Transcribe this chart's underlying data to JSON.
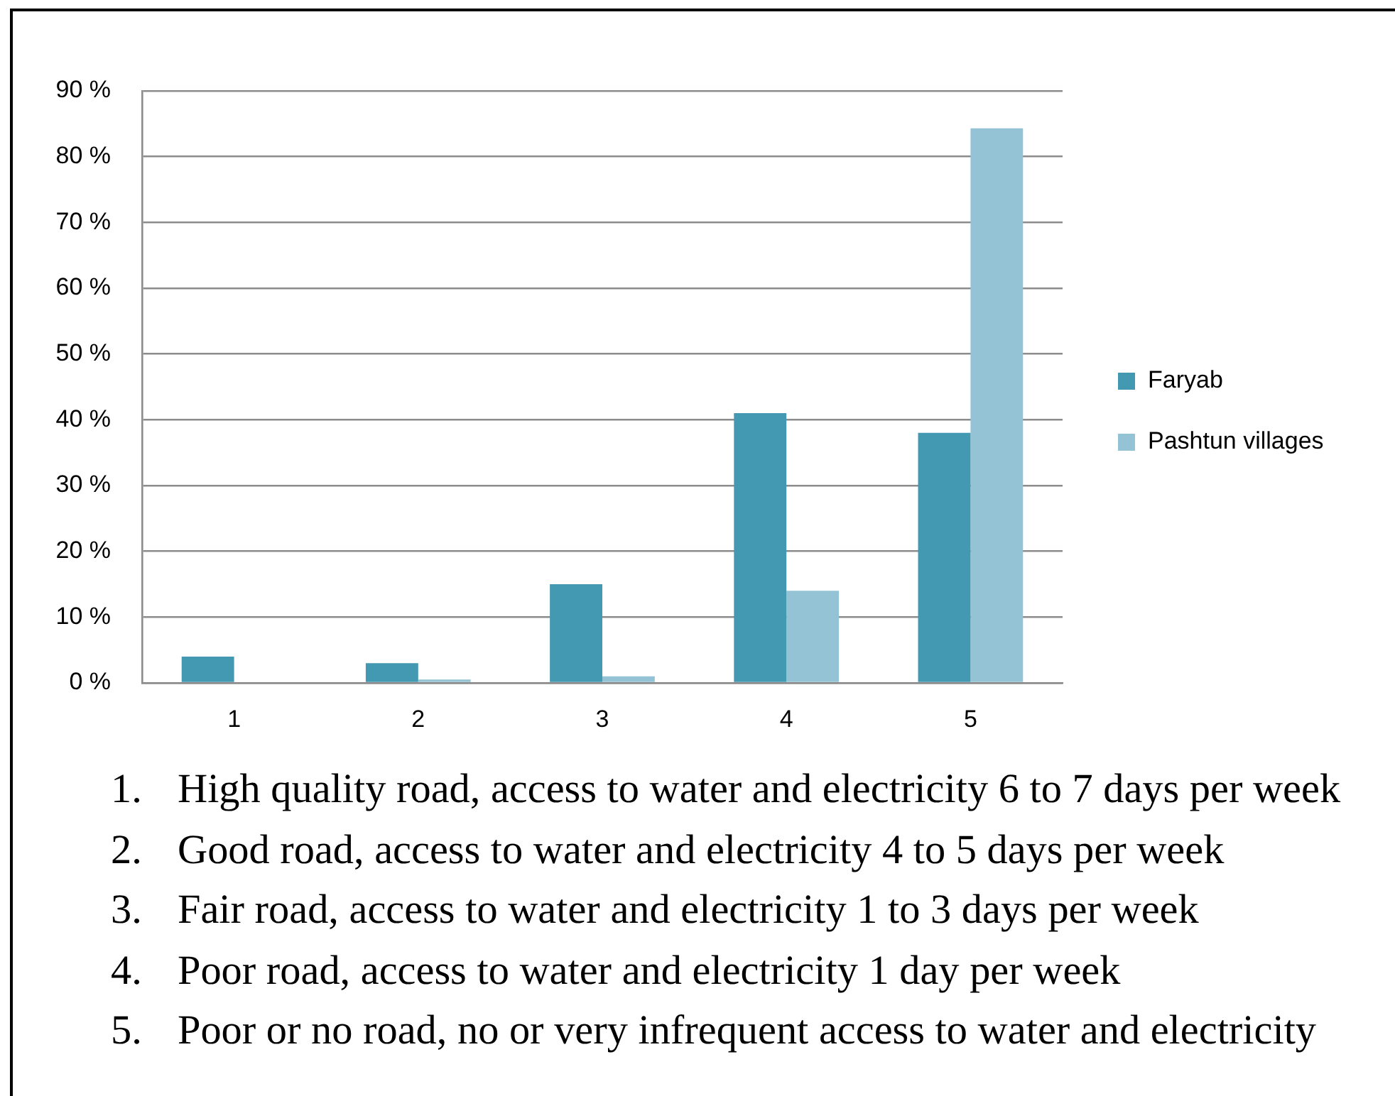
{
  "chart_data": {
    "type": "bar",
    "categories": [
      "1",
      "2",
      "3",
      "4",
      "5"
    ],
    "series": [
      {
        "name": "Faryab",
        "color": "#4399b1",
        "values": [
          4,
          3,
          15,
          41,
          38
        ]
      },
      {
        "name": "Pashtun villages",
        "color": "#94c3d5",
        "values": [
          0,
          0.5,
          1,
          14,
          84.3
        ]
      }
    ],
    "ylim": [
      0,
      90
    ],
    "yticks": [
      {
        "value": 0,
        "label": "0 %"
      },
      {
        "value": 10,
        "label": "10 %"
      },
      {
        "value": 20,
        "label": "20 %"
      },
      {
        "value": 30,
        "label": "30 %"
      },
      {
        "value": 40,
        "label": "40 %"
      },
      {
        "value": 50,
        "label": "50 %"
      },
      {
        "value": 60,
        "label": "60 %"
      },
      {
        "value": 70,
        "label": "70 %"
      },
      {
        "value": 80,
        "label": "80 %"
      },
      {
        "value": 90,
        "label": "90 %"
      }
    ],
    "grid": "y",
    "legend": "right",
    "annotations": [
      "1. High quality road, access to water and electricity 6 to 7 days per week",
      "2. Good road, access to water and electricity 4 to 5 days per week",
      "3. Fair road, access to water and electricity 1 to 3 days per week",
      "4. Poor road, access to water and electricity 1 day per week",
      "5. Poor or no road, no or very infrequent access to water and electricity"
    ]
  }
}
